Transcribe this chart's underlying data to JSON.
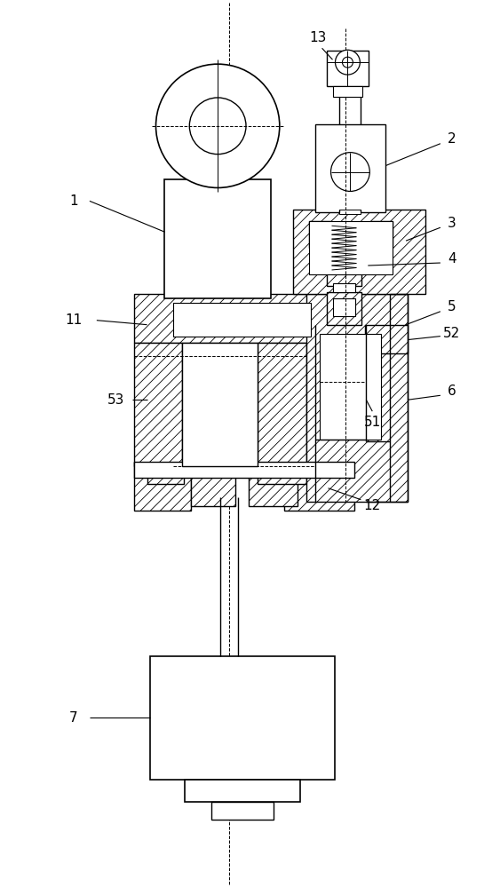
{
  "bg_color": "#ffffff",
  "line_color": "#000000",
  "fig_width": 5.54,
  "fig_height": 10.0,
  "dpi": 100
}
